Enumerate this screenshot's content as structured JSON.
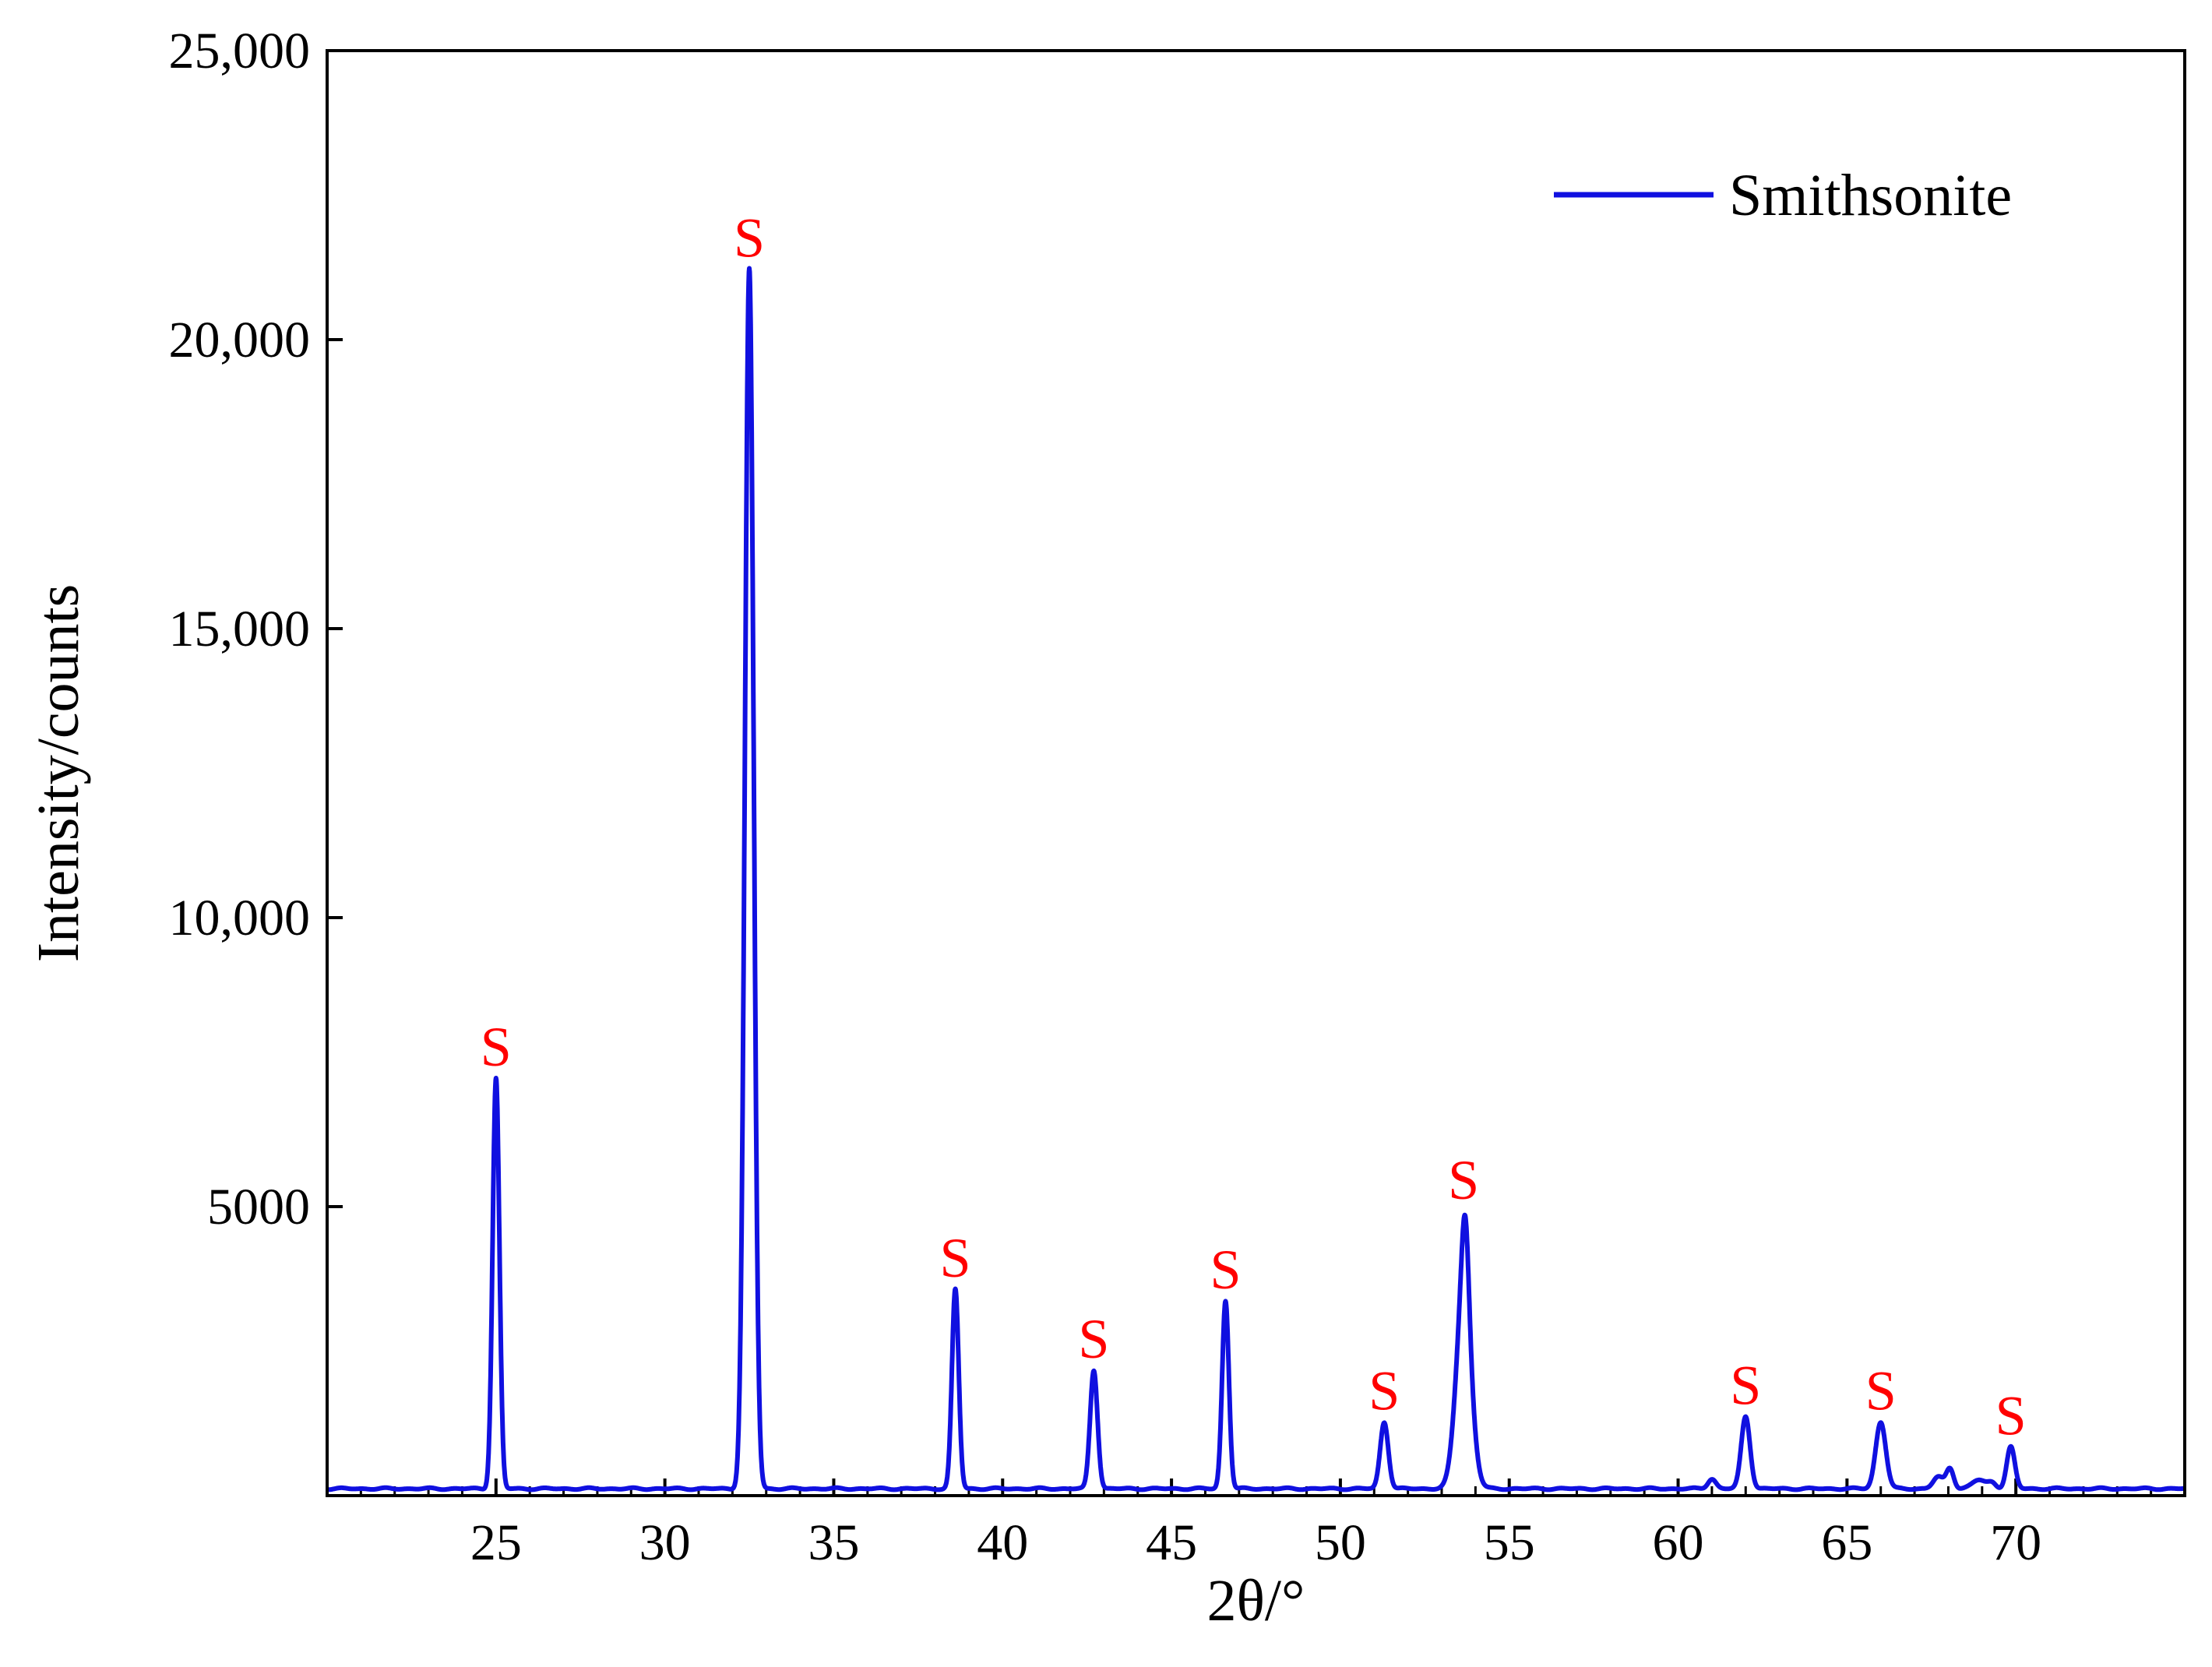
{
  "chart_data": {
    "type": "line",
    "xlabel": "2θ/°",
    "ylabel": "Intensity/counts",
    "xlim": [
      20.0,
      75.0
    ],
    "ylim": [
      0,
      25000
    ],
    "x_ticks": [
      25,
      30,
      35,
      40,
      45,
      50,
      55,
      60,
      65,
      70
    ],
    "x_tick_labels": [
      "25",
      "30",
      "35",
      "40",
      "45",
      "50",
      "55",
      "60",
      "65",
      "70"
    ],
    "y_ticks": [
      5000,
      10000,
      15000,
      20000,
      25000
    ],
    "y_tick_labels": [
      "5000",
      "10,000",
      "15,000",
      "20,000",
      "25,000"
    ],
    "grid": false,
    "legend": {
      "position": "top-right"
    },
    "baseline": 120,
    "series": [
      {
        "name": "Smithsonite",
        "color": "#1010e0",
        "peaks": [
          {
            "x": 25.0,
            "y": 7100,
            "width": 0.1
          },
          {
            "x": 32.5,
            "y": 21100,
            "width": 0.13
          },
          {
            "x": 38.6,
            "y": 3450,
            "width": 0.1
          },
          {
            "x": 42.7,
            "y": 2050,
            "width": 0.11
          },
          {
            "x": 46.6,
            "y": 3250,
            "width": 0.1
          },
          {
            "x": 51.3,
            "y": 1150,
            "width": 0.12
          },
          {
            "x": 53.65,
            "y": 3400,
            "width": 0.22
          },
          {
            "x": 53.7,
            "y": 1400,
            "width": 0.1
          },
          {
            "x": 61.0,
            "y": 170,
            "width": 0.12
          },
          {
            "x": 62.0,
            "y": 1250,
            "width": 0.13
          },
          {
            "x": 66.0,
            "y": 1150,
            "width": 0.15
          },
          {
            "x": 67.7,
            "y": 200,
            "width": 0.15
          },
          {
            "x": 68.05,
            "y": 350,
            "width": 0.11
          },
          {
            "x": 68.9,
            "y": 150,
            "width": 0.2
          },
          {
            "x": 69.3,
            "y": 100,
            "width": 0.12
          },
          {
            "x": 69.85,
            "y": 720,
            "width": 0.12
          }
        ]
      }
    ],
    "annotations": [
      {
        "text": "S",
        "x": 25.0,
        "y": 7100,
        "color": "#ff0000"
      },
      {
        "text": "S",
        "x": 32.5,
        "y": 21100,
        "color": "#ff0000"
      },
      {
        "text": "S",
        "x": 38.6,
        "y": 3450,
        "color": "#ff0000"
      },
      {
        "text": "S",
        "x": 42.7,
        "y": 2050,
        "color": "#ff0000"
      },
      {
        "text": "S",
        "x": 46.6,
        "y": 3250,
        "color": "#ff0000"
      },
      {
        "text": "S",
        "x": 51.3,
        "y": 1150,
        "color": "#ff0000"
      },
      {
        "text": "S",
        "x": 53.65,
        "y": 4800,
        "color": "#ff0000"
      },
      {
        "text": "S",
        "x": 62.0,
        "y": 1250,
        "color": "#ff0000"
      },
      {
        "text": "S",
        "x": 66.0,
        "y": 1150,
        "color": "#ff0000"
      },
      {
        "text": "S",
        "x": 69.85,
        "y": 720,
        "color": "#ff0000"
      }
    ]
  }
}
